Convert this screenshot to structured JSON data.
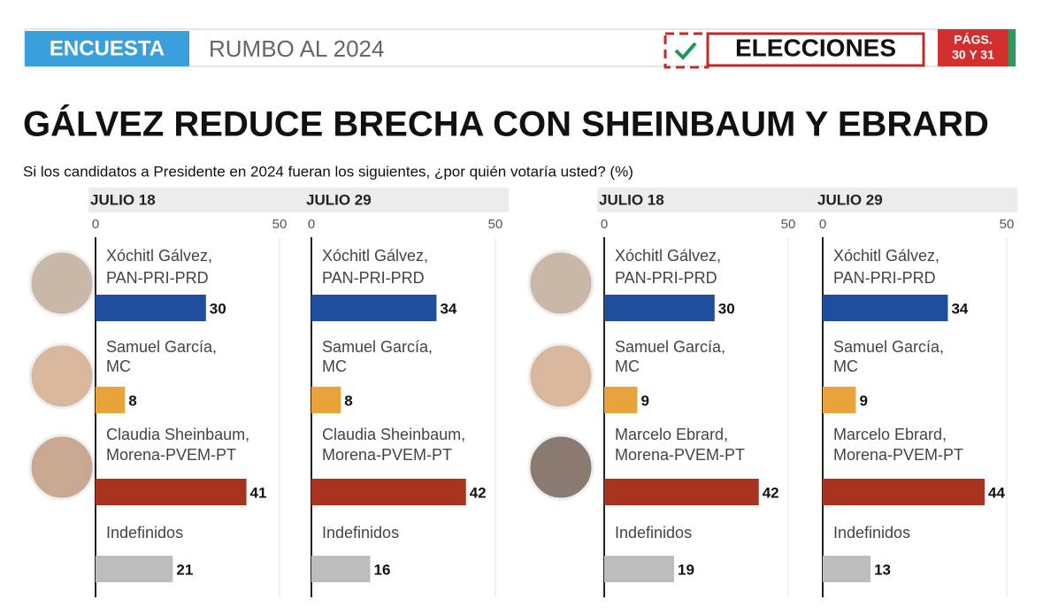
{
  "header": {
    "section": "ENCUESTA",
    "topic": "RUMBO AL 2024",
    "label": "ELECCIONES",
    "pages": [
      "PÁGS.",
      "30 Y 31"
    ]
  },
  "title": "GÁLVEZ REDUCE BRECHA CON SHEINBAUM Y EBRARD",
  "subtitle": "Si los candidatos a Presidente en 2024 fueran los siguientes, ¿por quién votaría usted? (%)",
  "chart_data": [
    {
      "type": "bar",
      "title": "JULIO 18",
      "categories": [
        [
          "Xóchitl Gálvez,",
          "PAN-PRI-PRD"
        ],
        [
          "Samuel García,",
          "MC"
        ],
        [
          "Claudia Sheinbaum,",
          "Morena-PVEM-PT"
        ],
        [
          "Indefinidos"
        ]
      ],
      "values": [
        30,
        8,
        41,
        21
      ],
      "colors": [
        "#1f4e9c",
        "#e8a33a",
        "#a8341f",
        "#bdbdbd"
      ],
      "xlim": [
        0,
        50
      ],
      "xticks": [
        0,
        50
      ]
    },
    {
      "type": "bar",
      "title": "JULIO 29",
      "categories": [
        [
          "Xóchitl Gálvez,",
          "PAN-PRI-PRD"
        ],
        [
          "Samuel García,",
          "MC"
        ],
        [
          "Claudia Sheinbaum,",
          "Morena-PVEM-PT"
        ],
        [
          "Indefinidos"
        ]
      ],
      "values": [
        34,
        8,
        42,
        16
      ],
      "colors": [
        "#1f4e9c",
        "#e8a33a",
        "#a8341f",
        "#bdbdbd"
      ],
      "xlim": [
        0,
        50
      ],
      "xticks": [
        0,
        50
      ]
    },
    {
      "type": "bar",
      "title": "JULIO 18",
      "categories": [
        [
          "Xóchitl Gálvez,",
          "PAN-PRI-PRD"
        ],
        [
          "Samuel García,",
          "MC"
        ],
        [
          "Marcelo Ebrard,",
          "Morena-PVEM-PT"
        ],
        [
          "Indefinidos"
        ]
      ],
      "values": [
        30,
        9,
        42,
        19
      ],
      "colors": [
        "#1f4e9c",
        "#e8a33a",
        "#a8341f",
        "#bdbdbd"
      ],
      "xlim": [
        0,
        50
      ],
      "xticks": [
        0,
        50
      ]
    },
    {
      "type": "bar",
      "title": "JULIO 29",
      "categories": [
        [
          "Xóchitl Gálvez,",
          "PAN-PRI-PRD"
        ],
        [
          "Samuel García,",
          "MC"
        ],
        [
          "Marcelo Ebrard,",
          "Morena-PVEM-PT"
        ],
        [
          "Indefinidos"
        ]
      ],
      "values": [
        34,
        9,
        44,
        13
      ],
      "colors": [
        "#1f4e9c",
        "#e8a33a",
        "#a8341f",
        "#bdbdbd"
      ],
      "xlim": [
        0,
        50
      ],
      "xticks": [
        0,
        50
      ]
    }
  ]
}
